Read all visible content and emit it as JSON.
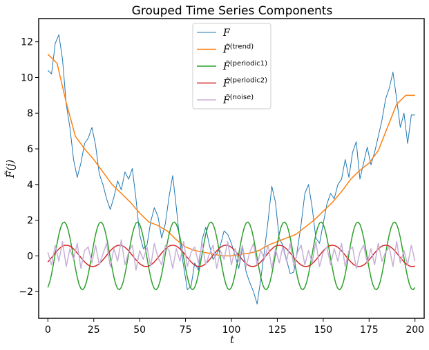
{
  "chart_data": {
    "type": "line",
    "title": "Grouped Time Series Components",
    "xlabel": "t",
    "ylabel": "F̃(j)",
    "xlim": [
      -5,
      205
    ],
    "ylim": [
      -3.5,
      13.3
    ],
    "xticks": [
      0,
      25,
      50,
      75,
      100,
      125,
      150,
      175,
      200
    ],
    "yticks": [
      -2,
      0,
      2,
      4,
      6,
      8,
      10,
      12
    ],
    "xtick_labels": [
      "0",
      "25",
      "50",
      "75",
      "100",
      "125",
      "150",
      "175",
      "200"
    ],
    "ytick_labels": [
      "−2",
      "0",
      "2",
      "4",
      "6",
      "8",
      "10",
      "12"
    ],
    "legend_position": "top-center",
    "series": [
      {
        "name": "F",
        "legend_base": "F",
        "legend_sup": "",
        "tilde": false,
        "color": "#1f77b4",
        "stroke": 1.0,
        "x": [
          0,
          2,
          4,
          6,
          8,
          10,
          12,
          14,
          16,
          18,
          20,
          22,
          24,
          26,
          28,
          30,
          32,
          34,
          36,
          38,
          40,
          42,
          44,
          46,
          48,
          50,
          52,
          54,
          56,
          58,
          60,
          62,
          64,
          66,
          68,
          70,
          72,
          74,
          76,
          78,
          80,
          82,
          84,
          86,
          88,
          90,
          92,
          94,
          96,
          98,
          100,
          102,
          104,
          106,
          108,
          110,
          112,
          114,
          116,
          118,
          120,
          122,
          124,
          126,
          128,
          130,
          132,
          134,
          136,
          138,
          140,
          142,
          144,
          146,
          148,
          150,
          152,
          154,
          156,
          158,
          160,
          162,
          164,
          166,
          168,
          170,
          172,
          174,
          176,
          178,
          180,
          182,
          184,
          186,
          188,
          190,
          192,
          194,
          196,
          198,
          200
        ],
        "values": [
          10.4,
          10.2,
          11.9,
          12.4,
          11.0,
          8.5,
          7.2,
          5.4,
          4.4,
          5.2,
          6.3,
          6.6,
          7.2,
          6.2,
          4.6,
          4.0,
          3.2,
          2.6,
          3.3,
          4.2,
          3.7,
          4.7,
          4.3,
          4.9,
          3.2,
          1.2,
          0.4,
          0.6,
          1.9,
          2.7,
          2.2,
          1.0,
          1.8,
          3.3,
          4.5,
          2.7,
          0.7,
          -0.6,
          -1.9,
          -1.7,
          -0.4,
          -0.8,
          0.9,
          1.6,
          0.6,
          -0.2,
          0.1,
          0.6,
          1.4,
          1.2,
          0.7,
          0.0,
          -0.7,
          0.5,
          -0.9,
          -1.5,
          -2.0,
          -2.7,
          -1.3,
          0.3,
          2.0,
          3.9,
          3.0,
          1.0,
          0.6,
          -0.2,
          -1.0,
          -0.9,
          0.4,
          1.8,
          3.5,
          4.0,
          2.7,
          1.0,
          0.7,
          1.8,
          2.9,
          3.5,
          3.2,
          4.0,
          4.3,
          5.4,
          4.4,
          5.8,
          6.4,
          4.3,
          5.2,
          6.1,
          5.1,
          5.8,
          6.7,
          7.6,
          8.8,
          9.4,
          10.3,
          8.8,
          7.2,
          8.0,
          6.3,
          7.9,
          7.9
        ]
      },
      {
        "name": "F̃(trend)",
        "legend_base": "F̃",
        "legend_sup": "(trend)",
        "tilde": true,
        "color": "#ff7f0e",
        "stroke": 1.5,
        "x": [
          0,
          5,
          10,
          15,
          20,
          25,
          30,
          35,
          40,
          45,
          50,
          55,
          60,
          65,
          70,
          75,
          80,
          85,
          90,
          95,
          100,
          105,
          110,
          115,
          120,
          125,
          130,
          135,
          140,
          145,
          150,
          155,
          160,
          165,
          170,
          175,
          180,
          185,
          190,
          195,
          200
        ],
        "values": [
          11.3,
          10.8,
          8.6,
          6.7,
          6.0,
          5.4,
          4.7,
          4.0,
          3.5,
          3.0,
          2.4,
          1.9,
          1.7,
          1.4,
          0.9,
          0.5,
          0.3,
          0.2,
          0.1,
          0.0,
          0.0,
          0.1,
          0.15,
          0.3,
          0.6,
          0.8,
          1.0,
          1.2,
          1.6,
          2.0,
          2.5,
          3.0,
          3.6,
          4.3,
          4.8,
          5.2,
          5.9,
          7.2,
          8.5,
          9.0,
          9.0
        ]
      },
      {
        "name": "F̃(periodic1)",
        "legend_base": "F̃",
        "legend_sup": "(periodic1)",
        "tilde": true,
        "color": "#2ca02c",
        "stroke": 1.5,
        "formula": {
          "amp": 1.9,
          "period": 20,
          "phase": -1.2
        }
      },
      {
        "name": "F̃(periodic2)",
        "legend_base": "F̃",
        "legend_sup": "(periodic2)",
        "tilde": true,
        "color": "#d62728",
        "stroke": 1.5,
        "formula": {
          "amp": 0.6,
          "period": 29,
          "phase": -0.6
        }
      },
      {
        "name": "F̃(noise)",
        "legend_base": "F̃",
        "legend_sup": "(noise)",
        "tilde": true,
        "color": "#c5b0d5",
        "stroke": 1.5,
        "x": [
          0,
          2,
          4,
          6,
          8,
          10,
          12,
          14,
          16,
          18,
          20,
          22,
          24,
          26,
          28,
          30,
          32,
          34,
          36,
          38,
          40,
          42,
          44,
          46,
          48,
          50,
          52,
          54,
          56,
          58,
          60,
          62,
          64,
          66,
          68,
          70,
          72,
          74,
          76,
          78,
          80,
          82,
          84,
          86,
          88,
          90,
          92,
          94,
          96,
          98,
          100,
          102,
          104,
          106,
          108,
          110,
          112,
          114,
          116,
          118,
          120,
          122,
          124,
          126,
          128,
          130,
          132,
          134,
          136,
          138,
          140,
          142,
          144,
          146,
          148,
          150,
          152,
          154,
          156,
          158,
          160,
          162,
          164,
          166,
          168,
          170,
          172,
          174,
          176,
          178,
          180,
          182,
          184,
          186,
          188,
          190,
          192,
          194,
          196,
          198,
          200
        ],
        "values": [
          0.2,
          -0.5,
          0.6,
          -0.3,
          0.8,
          -0.6,
          0.4,
          -0.2,
          0.7,
          -0.7,
          0.3,
          0.5,
          -0.4,
          0.6,
          -0.5,
          0.1,
          0.7,
          -0.6,
          0.4,
          -0.3,
          0.9,
          -0.5,
          0.2,
          0.6,
          -0.8,
          0.3,
          -0.2,
          0.5,
          -0.6,
          0.7,
          -0.1,
          -0.5,
          0.6,
          0.3,
          -0.7,
          0.4,
          -0.3,
          0.8,
          -0.6,
          0.2,
          0.5,
          -0.4,
          0.7,
          -0.5,
          0.1,
          0.6,
          -0.7,
          0.3,
          -0.2,
          0.8,
          -0.5,
          0.4,
          -0.3,
          0.6,
          -0.6,
          0.2,
          0.7,
          -0.5,
          0.3,
          -0.2,
          0.6,
          -0.7,
          0.4,
          -0.4,
          0.5,
          -0.3,
          0.7,
          -0.6,
          0.2,
          0.6,
          -0.5,
          0.3,
          -0.4,
          0.8,
          -0.6,
          0.2,
          0.5,
          -0.5,
          0.4,
          -0.3,
          0.7,
          -0.6,
          0.3,
          0.5,
          -0.7,
          0.2,
          0.6,
          -0.4,
          0.4,
          -0.5,
          0.7,
          -0.3,
          0.2,
          0.5,
          -0.6,
          0.8,
          -0.4,
          0.3,
          -0.5,
          0.6,
          -0.3
        ]
      }
    ]
  }
}
